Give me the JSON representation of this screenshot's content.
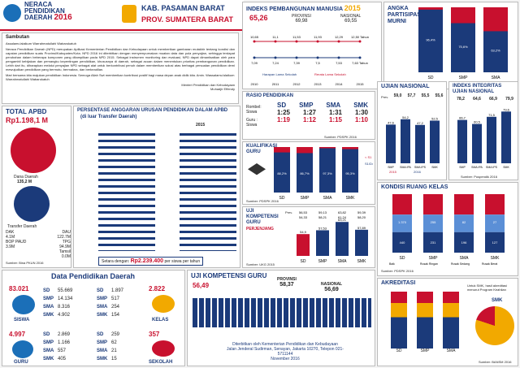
{
  "header": {
    "title_line1": "NERACA",
    "title_line2": "PENDIDIKAN",
    "title_line3": "DAERAH",
    "year": "2016",
    "kab": "KAB. PASAMAN BARAT",
    "prov": "PROV. SUMATERA BARAT"
  },
  "sambutan": {
    "heading": "Sambutan",
    "greeting": "Assalamu'alaikum Warrahmatullahi Wabarokatuh",
    "para1": "Neraca Pendidikan Daerah (NPD) merupakan Aplikasi Kementerian Pendidikan dan Kebudayaan untuk memberikan gambaran mutakhir tentang kondisi dan capaian pendidikan suatu Provinsi/Kabupaten/Kota. NPD 2016 ini diterbitkan dengan menyempurnakan muatan data dan pola penyajian, sehingga terdapat perubahan dalam beberapa komponen yang ditampilkan pada NPD 2015. Sebagai instrumen monitoring dan evaluasi, NPD dapat dimanfaatkan oleh para pengambil kebijakan dan pemangku kepentingan pendidikan, khususnya di daerah, sebagai acuan dalam menentukan prioritas pembangunan pendidikan. Lebih dari itu, diharapkan melalui penyajian NPD sebagai alat untuk berkontribusi penuh dalam memberikan solusi atas berbagai persoalan pendidikan demi mewujudkan pendidikan yang bermutu, bermakna, dan berkeadilan.",
    "para2": "Mari bersama kita majukan pendidikan Indonesia. Semoga Allah Swt memberikan kontribusi positif bagi masa depan anak didik kita. Amin. Wassalamu'alaikum Warrahmatullahi Wabarokatuh",
    "sign1": "Menteri Pendidikan dan Kebudayaan",
    "sign2": "Muhadjir Effendy"
  },
  "ipm": {
    "heading": "INDEKS PEMBANGUNAN MANUSIA",
    "year": "2015",
    "kab_value": "65,26",
    "prov_label": "PROVINSI",
    "prov_value": "69,98",
    "nas_label": "NASIONAL",
    "nas_value": "69,55",
    "years": [
      "2010",
      "2011",
      "2012",
      "2013",
      "2014",
      "2015"
    ],
    "harapan": [
      "10,65",
      "11,1",
      "11,53",
      "11,93",
      "12,29",
      "12,50 Tahun"
    ],
    "rata": [
      "7,09",
      "7,24",
      "7,39",
      "7,5",
      "7,53",
      "7,63 Tahun"
    ],
    "legend_harapan": "Harapan Lama Sekolah",
    "legend_rata": "Rerata Lama Sekolah"
  },
  "apm": {
    "heading": "ANGKA",
    "heading2": "PARTISIPASI",
    "heading3": "MURNI",
    "categories": [
      "SD",
      "SMP",
      "SMA"
    ],
    "values": [
      96.4,
      75.6,
      63.2
    ],
    "source": "Sumber: PDSPK 2016"
  },
  "total_apbd": {
    "heading": "TOTAL APBD",
    "value": "Rp1.198,1 M",
    "dana_daerah": "Dana Daerah",
    "dana_daerah_val": "135,2 M",
    "transfer": "Transfer Daerah",
    "dak_label": "DAK",
    "dak_val": "4.1M",
    "dau_label": "DAU",
    "dau_val": "122.7M",
    "bop_label": "BOP PAUD",
    "bop_val": "3.9M",
    "tpg_label": "TPG",
    "tpg_val": "94.9M",
    "tamsil_label": "Tamsil",
    "tamsil_val": "0.0M",
    "source": "Sumber: Bina PKUN 2016"
  },
  "anggaran": {
    "heading": "PERSENTASE ANGGARAN URUSAN PENDIDIKAN DALAM APBD",
    "sub": "(di luar Transfer Daerah)",
    "year": "2015",
    "setara_label": "Setara dengan:",
    "setara_val": "Rp2.239.400",
    "setara_suffix": "per siswa per tahun"
  },
  "rasio": {
    "heading": "RASIO PENDIDIKAN",
    "cols": [
      "SD",
      "SMP",
      "SMA",
      "SMK"
    ],
    "rombel_label": "Rombel:",
    "rombel_label2": "Siswa",
    "guru_label": "Guru :",
    "guru_label2": "Siswa",
    "rombel": [
      "1:25",
      "1:27",
      "1:31",
      "1:30"
    ],
    "guru": [
      "1:19",
      "1:12",
      "1:15",
      "1:10"
    ],
    "source": "Sumber: PDSPK 2016"
  },
  "un": {
    "heading": "UJIAN NASIONAL",
    "prev": "Prev.",
    "values": [
      "59,0",
      "57,7",
      "55,5",
      "55,6"
    ],
    "values2": [
      "59,0",
      "57,7",
      "55,5",
      "55,6"
    ],
    "bars": [
      47.6,
      54.2,
      47.2,
      52.5
    ],
    "cats": [
      "SMP",
      "SMA IPA",
      "SMA IPS",
      "SMK"
    ],
    "legend": [
      "2015",
      "2016"
    ]
  },
  "iiun": {
    "heading": "INDEKS INTEGRITAS",
    "heading2": "UJIAN NASIONAL",
    "values": [
      "78,2",
      "64,6",
      "66,9",
      "79,9"
    ],
    "bars": [
      66.7,
      60.5,
      71.5,
      79.6
    ],
    "cats": [
      "SMP",
      "SMA IPA",
      "SMA IPS",
      "SMK"
    ],
    "source": "Sumber: Puspendik 2016"
  },
  "kualifikasi": {
    "heading": "KUALIFIKASI",
    "heading2": "GURU",
    "cats": [
      "SD",
      "SMP",
      "SMA",
      "SMK"
    ],
    "layak": [
      88.2,
      86.7,
      97.3,
      95.3
    ],
    "source": "Sumber: PDSPK 2016",
    "legend": [
      "< S1",
      "S1/D4"
    ]
  },
  "ukg": {
    "heading": "UJI",
    "heading2": "KOMPETENSI",
    "heading3": "GURU",
    "sub": "PERJENJANG",
    "prev": "Prev.",
    "prev_vals": [
      "56,53",
      "59,13",
      "63,82",
      "59,39"
    ],
    "prev_vals2": [
      "54,33",
      "58,21",
      "61,24",
      "58,20"
    ],
    "cats": [
      "SD",
      "SMP",
      "SMA",
      "SMK"
    ],
    "values": [
      54.9,
      57.53,
      63.21,
      57.89
    ],
    "value_labels": [
      "54,9",
      "57,53",
      "63,21",
      "57,89"
    ],
    "source": "Sumber: UKG 2015"
  },
  "kondisi": {
    "heading": "KONDISI RUANG KELAS",
    "cats": [
      "SD",
      "SMP",
      "SMA",
      "SMK"
    ],
    "baik": [
      "440",
      "231",
      "196",
      "127"
    ],
    "rr": [
      "1.370",
      "255",
      "82",
      "27"
    ],
    "legend": [
      "Baik",
      "Rusak Ringan",
      "Rusak Sedang",
      "Rusak Berat"
    ],
    "source": "Sumber: PDSPK 2016"
  },
  "data_pendidikan": {
    "heading": "Data Pendidikan Daerah",
    "siswa_total": "83.021",
    "siswa_label": "SISWA",
    "siswa_breakdown": [
      {
        "lbl": "SD",
        "val": "55.669"
      },
      {
        "lbl": "SMP",
        "val": "14.134"
      },
      {
        "lbl": "SMA",
        "val": "8.316"
      },
      {
        "lbl": "SMK",
        "val": "4.902"
      }
    ],
    "kelas_total": "2.822",
    "kelas_label": "KELAS",
    "kelas_breakdown": [
      {
        "lbl": "SD",
        "val": "1.897"
      },
      {
        "lbl": "SMP",
        "val": "517"
      },
      {
        "lbl": "SMA",
        "val": "254"
      },
      {
        "lbl": "SMK",
        "val": "154"
      }
    ],
    "guru_total": "4.997",
    "guru_label": "GURU",
    "guru_breakdown": [
      {
        "lbl": "SD",
        "val": "2.869"
      },
      {
        "lbl": "SMP",
        "val": "1.166"
      },
      {
        "lbl": "SMA",
        "val": "557"
      },
      {
        "lbl": "SMK",
        "val": "405"
      }
    ],
    "sekolah_total": "357",
    "sekolah_label": "SEKOLAH",
    "sekolah_breakdown": [
      {
        "lbl": "SD",
        "val": "259"
      },
      {
        "lbl": "SMP",
        "val": "62"
      },
      {
        "lbl": "SMA",
        "val": "21"
      },
      {
        "lbl": "SMK",
        "val": "15"
      }
    ]
  },
  "ukg_kab": {
    "heading": "UJI KOMPETENSI GURU",
    "value": "56,49",
    "prov_label": "PROVINSI",
    "prov_val": "58,37",
    "nas_label": "NASIONAL",
    "nas_val": "56,69",
    "footer1": "Diterbitkan oleh Kementerian Pendidikan dan Kebudayaan",
    "footer2": "Jalan Jenderal Sudirman, Senayan, Jakarta 10270, Telepon 021-5711144",
    "footer3": "November 2016"
  },
  "akreditasi": {
    "heading": "AKREDITASI",
    "note": "Untuk SMK, hasil akreditasi menurut Program Keahlian",
    "cats": [
      "SD",
      "SMP",
      "SMA"
    ],
    "smk_label": "SMK",
    "source": "Sumber: BANSM 2016"
  },
  "colors": {
    "navy": "#1b3a7a",
    "red": "#c8102e",
    "blue": "#1b6fb8",
    "orange": "#f2a900"
  }
}
